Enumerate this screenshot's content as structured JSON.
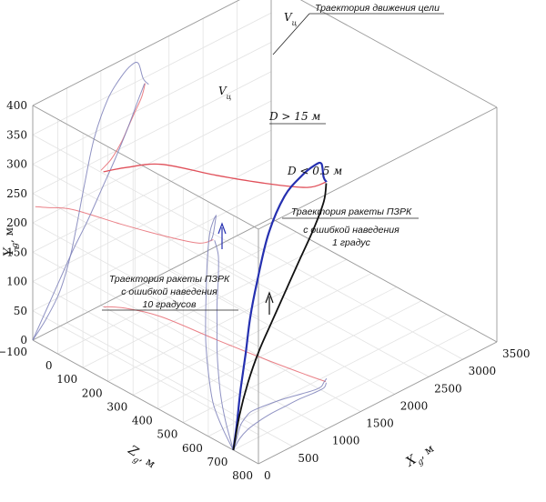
{
  "chart_data": {
    "type": "line",
    "projection": "3d",
    "title": "",
    "axes": {
      "x": {
        "label": "X",
        "sub": "g",
        "unit": ", м",
        "range": [
          0,
          3500
        ],
        "ticks": [
          "0",
          "500",
          "1000",
          "1500",
          "2000",
          "2500",
          "3000",
          "3500"
        ]
      },
      "z": {
        "label": "Z",
        "sub": "g",
        "unit": ", м",
        "range": [
          -100,
          800
        ],
        "ticks": [
          "−100",
          "0",
          "100",
          "200",
          "300",
          "400",
          "500",
          "600",
          "700",
          "800"
        ]
      },
      "y": {
        "label": "Y",
        "sub": "g",
        "unit": ", м",
        "range": [
          0,
          400
        ],
        "ticks": [
          "0",
          "50",
          "100",
          "150",
          "200",
          "250",
          "300",
          "350",
          "400"
        ]
      }
    },
    "grid": true,
    "series": [
      {
        "name": "Траектория движения цели",
        "color": "#e0505a",
        "points": [
          [
            1650,
            340,
            620
          ],
          [
            1600,
            320,
            560
          ],
          [
            1500,
            300,
            420
          ],
          [
            1400,
            280,
            250
          ],
          [
            1300,
            260,
            60
          ],
          [
            1150,
            240,
            -40
          ],
          [
            1000,
            230,
            -90
          ]
        ]
      },
      {
        "name": "Траектория ракеты ПЗРК с ошибкой наведения 10 градусов",
        "color": "#2530b0",
        "points": [
          [
            0,
            0,
            700
          ],
          [
            200,
            25,
            660
          ],
          [
            400,
            60,
            620
          ],
          [
            550,
            110,
            600
          ],
          [
            650,
            160,
            590
          ],
          [
            750,
            215,
            590
          ],
          [
            900,
            290,
            595
          ],
          [
            1100,
            345,
            605
          ],
          [
            1300,
            372,
            620
          ],
          [
            1450,
            383,
            630
          ],
          [
            1550,
            380,
            630
          ],
          [
            1620,
            350,
            620
          ],
          [
            1700,
            335,
            610
          ]
        ]
      },
      {
        "name": "Траектория ракеты ПЗРК с ошибкой наведения 1 градус",
        "color": "#111111",
        "points": [
          [
            0,
            0,
            700
          ],
          [
            200,
            40,
            670
          ],
          [
            400,
            80,
            650
          ],
          [
            600,
            120,
            640
          ],
          [
            800,
            155,
            635
          ],
          [
            1000,
            195,
            635
          ],
          [
            1200,
            235,
            635
          ],
          [
            1400,
            280,
            640
          ],
          [
            1550,
            318,
            640
          ],
          [
            1640,
            340,
            625
          ]
        ]
      }
    ],
    "projections_shown": [
      "Y–Z wall",
      "X–Y wall",
      "X–Z floor"
    ],
    "annotations": [
      {
        "text": "Траектория движения цели"
      },
      {
        "text": "Траектория ракеты ПЗРК с ошибкой наведения 10 градусов",
        "lines": [
          "Траектория ракеты ПЗРК",
          "с ошибкой наведения",
          "10 градусов"
        ]
      },
      {
        "text": "Траектория ракеты ПЗРК с ошибкой наведения 1 градус",
        "lines": [
          "Траектория ракеты ПЗРК",
          "с ошибкой наведения",
          "1 градус"
        ]
      },
      {
        "text": "D > 15 м"
      },
      {
        "text": "D < 0.5 м"
      },
      {
        "text": "V",
        "sub": "ц"
      },
      {
        "text": "V",
        "sub": "ц"
      }
    ]
  }
}
